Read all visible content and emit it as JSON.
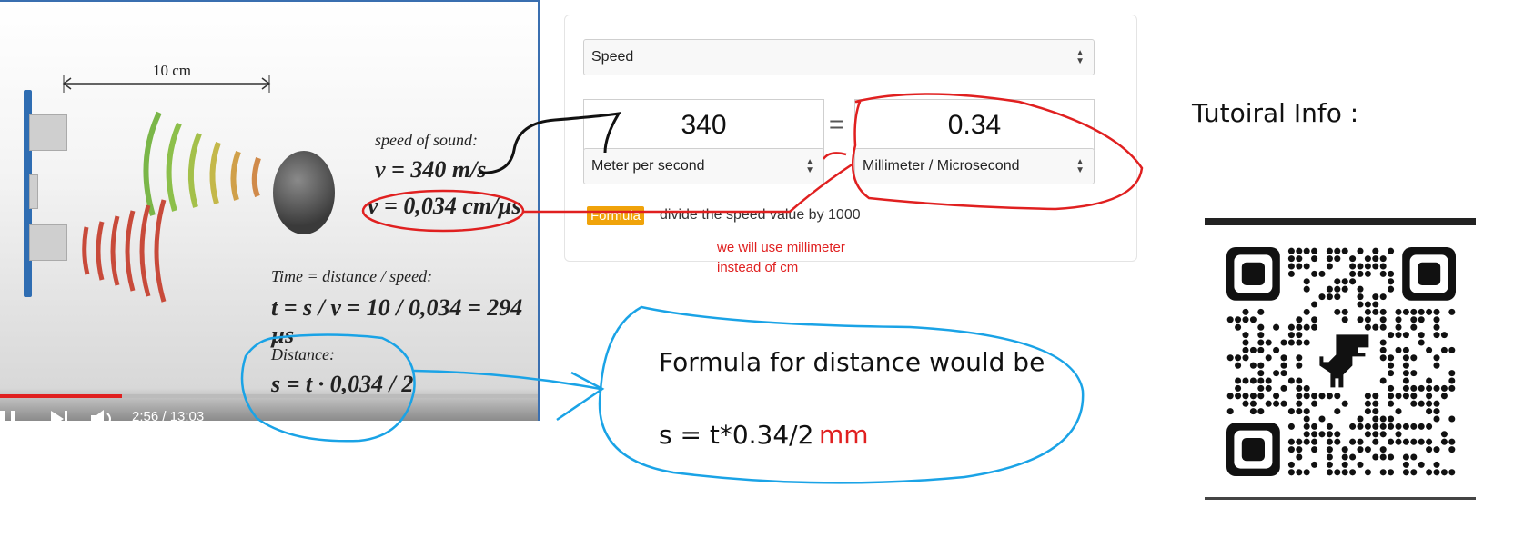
{
  "video": {
    "distance_label": "10 cm",
    "speed_of_sound_label": "speed of sound:",
    "v_ms": "v = 340 m/s",
    "v_cmus": "v = 0,034 cm/µs",
    "time_label": "Time = distance / speed:",
    "time_formula": "t = s / v = 10 / 0,034 = 294 µs",
    "distance_label2": "Distance:",
    "distance_formula": "s = t · 0,034 / 2",
    "timestamp": "2:56 / 13:03",
    "progress_fraction": 0.226
  },
  "converter": {
    "quantity_select": "Speed",
    "from_value": "340",
    "equals": "=",
    "to_value": "0.34",
    "from_unit": "Meter per second",
    "to_unit": "Millimeter / Microsecond",
    "formula_badge": "Formula",
    "formula_text": "divide the speed value by 1000"
  },
  "annotations": {
    "red_note_line1": "we will use millimeter",
    "red_note_line2": "instead of cm",
    "formula_title": "Formula for distance would be",
    "formula_expr": "s = t*0.34/2",
    "formula_unit": "mm",
    "tutorial_info": "Tutoiral Info :"
  },
  "colors": {
    "red_ink": "#e02020",
    "blue_ink": "#1aa3e6",
    "badge": "#f0a30a"
  }
}
